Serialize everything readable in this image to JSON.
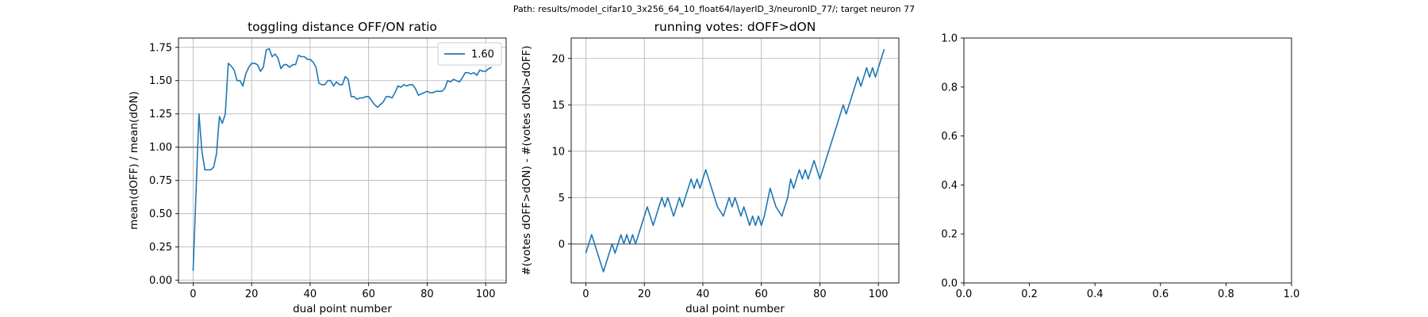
{
  "suptitle": "Path: results/model_cifar10_3x256_64_10_float64/layerID_3/neuronID_77/; target neuron 77",
  "chart_data": [
    {
      "type": "line",
      "title": "toggling distance OFF/ON ratio",
      "xlabel": "dual point number",
      "ylabel": "mean(dOFF) / mean(dON)",
      "xlim": [
        -5,
        107
      ],
      "ylim": [
        -0.02,
        1.82
      ],
      "xticks": [
        0,
        20,
        40,
        60,
        80,
        100
      ],
      "yticks": [
        0.0,
        0.25,
        0.5,
        0.75,
        1.0,
        1.25,
        1.5,
        1.75
      ],
      "ytick_format": 2,
      "grid": true,
      "legend": "top-right",
      "hline": 1.0,
      "series": [
        {
          "name": "1.60",
          "color": "#1f77b4",
          "x": [
            0,
            1,
            2,
            3,
            4,
            5,
            6,
            7,
            8,
            9,
            10,
            11,
            12,
            13,
            14,
            15,
            16,
            17,
            18,
            19,
            20,
            21,
            22,
            23,
            24,
            25,
            26,
            27,
            28,
            29,
            30,
            31,
            32,
            33,
            34,
            35,
            36,
            37,
            38,
            39,
            40,
            41,
            42,
            43,
            44,
            45,
            46,
            47,
            48,
            49,
            50,
            51,
            52,
            53,
            54,
            55,
            56,
            57,
            58,
            59,
            60,
            61,
            62,
            63,
            64,
            65,
            66,
            67,
            68,
            69,
            70,
            71,
            72,
            73,
            74,
            75,
            76,
            77,
            78,
            79,
            80,
            81,
            82,
            83,
            84,
            85,
            86,
            87,
            88,
            89,
            90,
            91,
            92,
            93,
            94,
            95,
            96,
            97,
            98,
            99,
            100,
            101,
            102
          ],
          "y": [
            0.07,
            0.66,
            1.25,
            0.97,
            0.83,
            0.83,
            0.83,
            0.85,
            0.95,
            1.23,
            1.18,
            1.25,
            1.63,
            1.61,
            1.58,
            1.5,
            1.5,
            1.46,
            1.55,
            1.6,
            1.63,
            1.63,
            1.62,
            1.57,
            1.6,
            1.73,
            1.74,
            1.68,
            1.7,
            1.67,
            1.59,
            1.62,
            1.62,
            1.6,
            1.62,
            1.62,
            1.69,
            1.68,
            1.68,
            1.66,
            1.66,
            1.64,
            1.6,
            1.48,
            1.47,
            1.47,
            1.5,
            1.5,
            1.46,
            1.49,
            1.47,
            1.47,
            1.53,
            1.51,
            1.38,
            1.38,
            1.36,
            1.37,
            1.37,
            1.38,
            1.38,
            1.35,
            1.32,
            1.3,
            1.32,
            1.34,
            1.38,
            1.38,
            1.37,
            1.41,
            1.46,
            1.45,
            1.47,
            1.46,
            1.47,
            1.47,
            1.44,
            1.39,
            1.4,
            1.41,
            1.42,
            1.41,
            1.41,
            1.42,
            1.42,
            1.42,
            1.44,
            1.5,
            1.49,
            1.51,
            1.5,
            1.49,
            1.52,
            1.56,
            1.56,
            1.55,
            1.56,
            1.54,
            1.58,
            1.57,
            1.57,
            1.59,
            1.6
          ]
        }
      ]
    },
    {
      "type": "line",
      "title": "running votes: dOFF>dON",
      "xlabel": "dual point number",
      "ylabel": "#(votes dOFF>dON) - #(votes dON>dOFF)",
      "xlim": [
        -5,
        107
      ],
      "ylim": [
        -4.2,
        22.2
      ],
      "xticks": [
        0,
        20,
        40,
        60,
        80,
        100
      ],
      "yticks": [
        0,
        5,
        10,
        15,
        20
      ],
      "ytick_format": 0,
      "grid": true,
      "legend": "none",
      "hline": 0,
      "series": [
        {
          "color": "#1f77b4",
          "x": [
            0,
            2,
            4,
            6,
            8,
            9,
            10,
            12,
            13,
            14,
            15,
            16,
            17,
            18,
            20,
            21,
            23,
            25,
            26,
            27,
            28,
            29,
            30,
            31,
            32,
            33,
            34,
            35,
            36,
            37,
            38,
            39,
            40,
            41,
            43,
            45,
            47,
            48,
            49,
            50,
            51,
            52,
            53,
            54,
            55,
            56,
            57,
            58,
            59,
            60,
            61,
            63,
            65,
            67,
            69,
            70,
            71,
            72,
            73,
            74,
            75,
            76,
            77,
            78,
            79,
            80,
            82,
            84,
            86,
            88,
            89,
            91,
            93,
            94,
            95,
            96,
            97,
            98,
            99,
            100,
            102
          ],
          "y": [
            -1,
            1,
            -1,
            -3,
            -1,
            0,
            -1,
            1,
            0,
            1,
            0,
            1,
            0,
            1,
            3,
            4,
            2,
            4,
            5,
            4,
            5,
            4,
            3,
            4,
            5,
            4,
            5,
            6,
            7,
            6,
            7,
            6,
            7,
            8,
            6,
            4,
            3,
            4,
            5,
            4,
            5,
            4,
            3,
            4,
            3,
            2,
            3,
            2,
            3,
            2,
            3,
            6,
            4,
            3,
            5,
            7,
            6,
            7,
            8,
            7,
            8,
            7,
            8,
            9,
            8,
            7,
            9,
            11,
            13,
            15,
            14,
            16,
            18,
            17,
            18,
            19,
            18,
            19,
            18,
            19,
            21
          ]
        }
      ]
    },
    {
      "type": "line",
      "title": "",
      "xlabel": "",
      "ylabel": "",
      "xlim": [
        0,
        1
      ],
      "ylim": [
        0,
        1
      ],
      "xticks": [
        0.0,
        0.2,
        0.4,
        0.6,
        0.8,
        1.0
      ],
      "yticks": [
        0.0,
        0.2,
        0.4,
        0.6,
        0.8,
        1.0
      ],
      "ytick_format": 1,
      "xtick_format": 1,
      "grid": false,
      "legend": "none",
      "series": []
    }
  ]
}
